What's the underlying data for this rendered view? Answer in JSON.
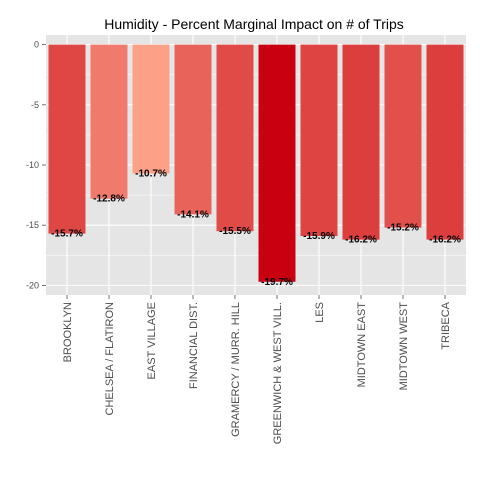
{
  "chart_data": {
    "type": "bar",
    "title": "Humidity - Percent Marginal Impact on # of Trips",
    "xlabel": "",
    "ylabel": "",
    "categories": [
      "BROOKLYN",
      "CHELSEA / FLATIRON",
      "EAST VILLAGE",
      "FINANCIAL DIST.",
      "GRAMERCY / MURR. HILL",
      "GREENWICH & WEST VILL.",
      "LES",
      "MIDTOWN EAST",
      "MIDTOWN WEST",
      "TRIBECA"
    ],
    "values": [
      -15.7,
      -12.8,
      -10.7,
      -14.1,
      -15.5,
      -19.7,
      -15.9,
      -16.2,
      -15.2,
      -16.2
    ],
    "data_labels": [
      "-15.7%",
      "-12.8%",
      "-10.7%",
      "-14.1%",
      "-15.5%",
      "-19.7%",
      "-15.9%",
      "-16.2%",
      "-15.2%",
      "-16.2%"
    ],
    "ylim": [
      -20.8,
      0.8
    ],
    "yticks": [
      0,
      -5,
      -10,
      -15,
      -20
    ],
    "ytick_labels": [
      "0",
      "-5",
      "-10",
      "-15",
      "-20"
    ],
    "grid": true,
    "legend": "none",
    "colors": {
      "panel_background": "#e5e5e5",
      "gridline": "#ffffff",
      "low_fill": "#fca088",
      "high_fill": "#c8000f"
    }
  }
}
